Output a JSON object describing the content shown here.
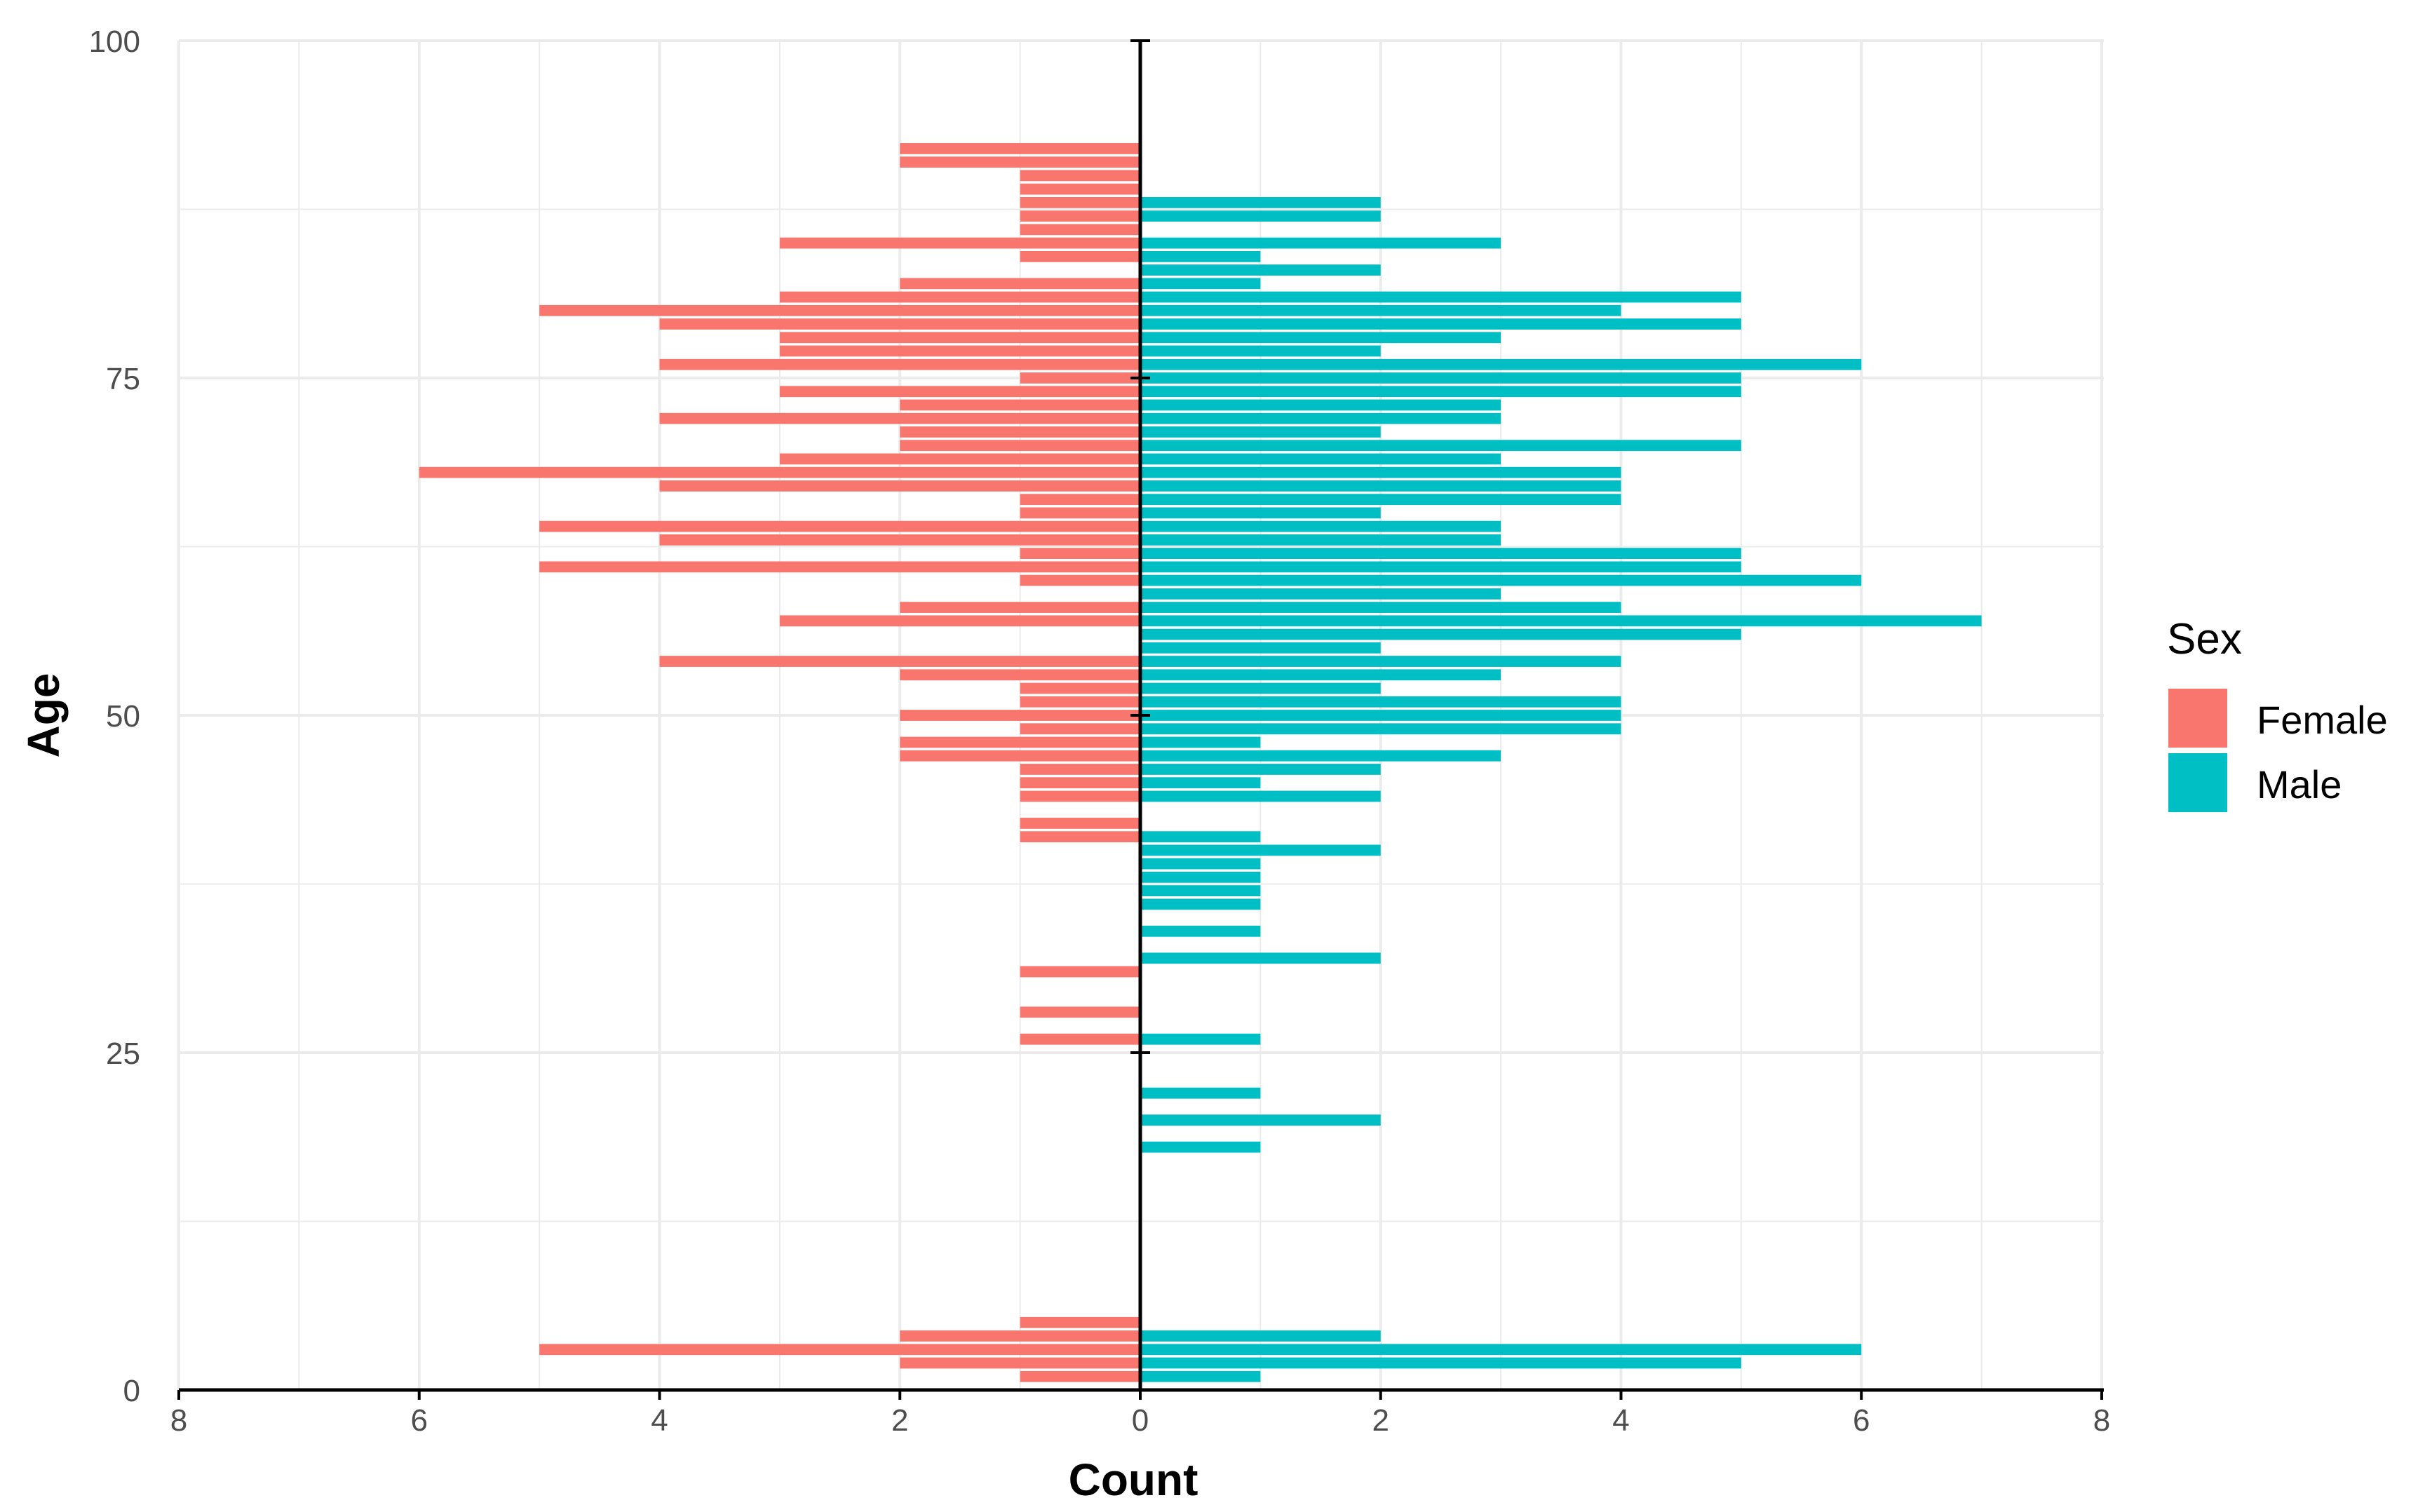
{
  "chart_data": {
    "type": "bar",
    "orientation": "horizontal",
    "layout": "population-pyramid",
    "xlabel": "Count",
    "ylabel": "Age",
    "xlim": [
      -8,
      8
    ],
    "ylim": [
      0,
      100
    ],
    "x_ticks": [
      -8,
      -6,
      -4,
      -2,
      0,
      2,
      4,
      6,
      8
    ],
    "x_tick_labels": [
      "8",
      "6",
      "4",
      "2",
      "0",
      "2",
      "4",
      "6",
      "8"
    ],
    "y_ticks": [
      0,
      25,
      50,
      75,
      100
    ],
    "y_tick_labels": [
      "0",
      "25",
      "50",
      "75",
      "100"
    ],
    "grid": true,
    "legend": {
      "title": "Sex",
      "position": "right",
      "entries": [
        {
          "label": "Female",
          "color": "#F8766D"
        },
        {
          "label": "Male",
          "color": "#00BFC4"
        }
      ]
    },
    "series": [
      {
        "name": "Female",
        "color": "#F8766D",
        "direction": "left",
        "ages": [
          1,
          2,
          3,
          4,
          5,
          26,
          28,
          31,
          41,
          42,
          44,
          45,
          46,
          47,
          48,
          49,
          50,
          51,
          52,
          53,
          54,
          57,
          58,
          60,
          61,
          62,
          63,
          64,
          65,
          66,
          67,
          68,
          69,
          70,
          71,
          72,
          73,
          74,
          75,
          76,
          77,
          78,
          79,
          80,
          81,
          82,
          84,
          85,
          86,
          87,
          88,
          89,
          90,
          91,
          92
        ],
        "values": [
          1,
          2,
          5,
          2,
          1,
          1,
          1,
          1,
          1,
          1,
          1,
          1,
          1,
          2,
          2,
          1,
          2,
          1,
          1,
          2,
          4,
          3,
          2,
          1,
          5,
          1,
          4,
          5,
          1,
          1,
          4,
          6,
          3,
          2,
          2,
          4,
          2,
          3,
          1,
          4,
          3,
          3,
          4,
          5,
          3,
          2,
          1,
          3,
          1,
          1,
          1,
          1,
          1,
          2,
          2
        ]
      },
      {
        "name": "Male",
        "color": "#00BFC4",
        "direction": "right",
        "ages": [
          1,
          2,
          3,
          4,
          18,
          20,
          22,
          26,
          32,
          34,
          36,
          37,
          38,
          39,
          40,
          41,
          44,
          45,
          46,
          47,
          48,
          49,
          50,
          51,
          52,
          53,
          54,
          55,
          56,
          57,
          58,
          59,
          60,
          61,
          62,
          63,
          64,
          65,
          66,
          67,
          68,
          69,
          70,
          71,
          72,
          73,
          74,
          75,
          76,
          77,
          78,
          79,
          80,
          81,
          82,
          83,
          84,
          85,
          87,
          88
        ],
        "values": [
          1,
          5,
          6,
          2,
          1,
          2,
          1,
          1,
          2,
          1,
          1,
          1,
          1,
          1,
          2,
          1,
          2,
          1,
          2,
          3,
          1,
          4,
          4,
          4,
          2,
          3,
          4,
          2,
          5,
          7,
          4,
          3,
          6,
          5,
          5,
          3,
          3,
          2,
          4,
          4,
          4,
          3,
          5,
          2,
          3,
          3,
          5,
          5,
          6,
          2,
          3,
          5,
          4,
          5,
          1,
          2,
          1,
          3,
          2,
          2
        ]
      }
    ]
  }
}
